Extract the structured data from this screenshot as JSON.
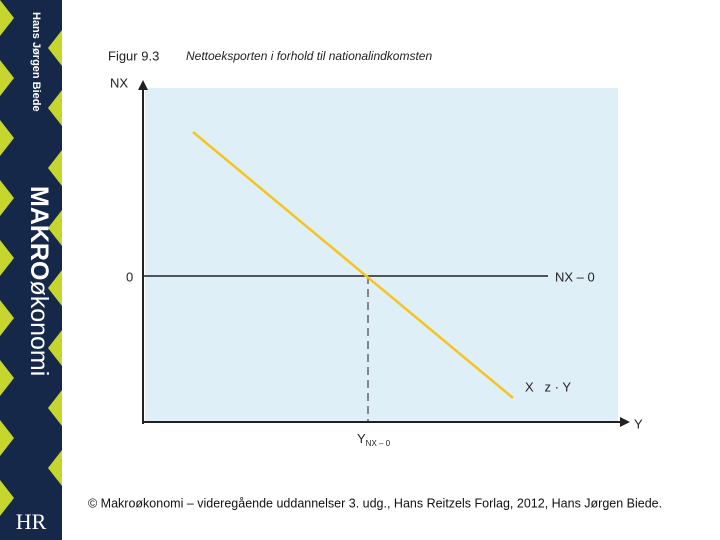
{
  "spine": {
    "author": "Hans Jørgen Biede",
    "title_bold": "MAKRO",
    "title_rest": "økonomi",
    "logo": "HR"
  },
  "figure": {
    "number": "Figur 9.3",
    "title": "Nettoeksporten i forhold til nationalindkomsten",
    "y_axis_label": "NX",
    "x_axis_label": "Y",
    "zero_label": "0",
    "zero_line_label": "NX – 0",
    "line_label": "X   z · Y",
    "intersection_label": "Y",
    "intersection_subscript": "NX – 0"
  },
  "footer": "© Makroøkonomi – videregående uddannelser 3. udg., Hans Reitzels Forlag, 2012, Hans Jørgen Biede."
}
